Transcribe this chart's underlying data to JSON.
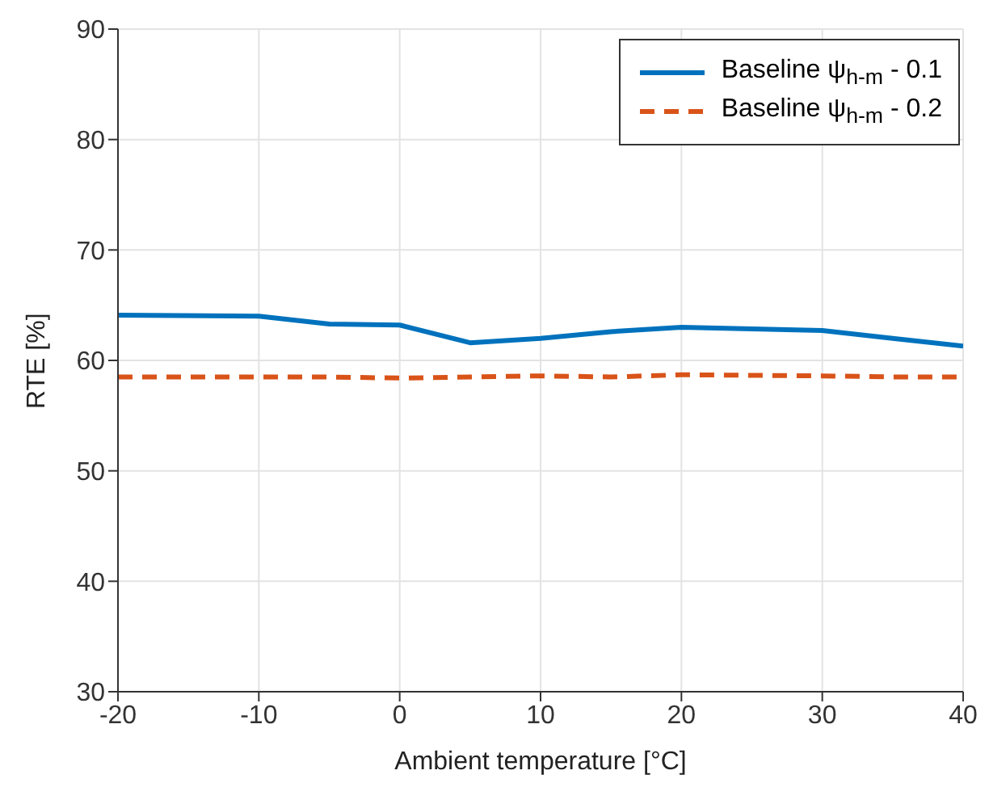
{
  "chart_data": {
    "type": "line",
    "xlabel": "Ambient  temperature [°C]",
    "ylabel": "RTE [%]",
    "x": [
      -20,
      -10,
      -5,
      0,
      5,
      10,
      15,
      20,
      30,
      35,
      40
    ],
    "series": [
      {
        "name": "Baseline ψ$_{h-m}$ - 0.1",
        "color": "#0072bd",
        "values": [
          64.1,
          64.0,
          63.3,
          63.2,
          61.6,
          62.0,
          62.6,
          63.0,
          62.7,
          62.0,
          61.3
        ],
        "line_style": "solid"
      },
      {
        "name": "Baseline ψ$_{h-m}$ - 0.2",
        "color": "#d95319",
        "values": [
          58.5,
          58.5,
          58.5,
          58.4,
          58.5,
          58.6,
          58.5,
          58.7,
          58.6,
          58.5,
          58.5
        ],
        "line_style": "dashed"
      }
    ],
    "xlim": [
      -20,
      40
    ],
    "xticks": [
      -20,
      -10,
      0,
      10,
      20,
      30,
      40
    ],
    "ylim": [
      30,
      90
    ],
    "yticks": [
      30,
      40,
      50,
      60,
      70,
      80,
      90
    ],
    "grid": true,
    "legend": "top right",
    "marker": "none"
  }
}
